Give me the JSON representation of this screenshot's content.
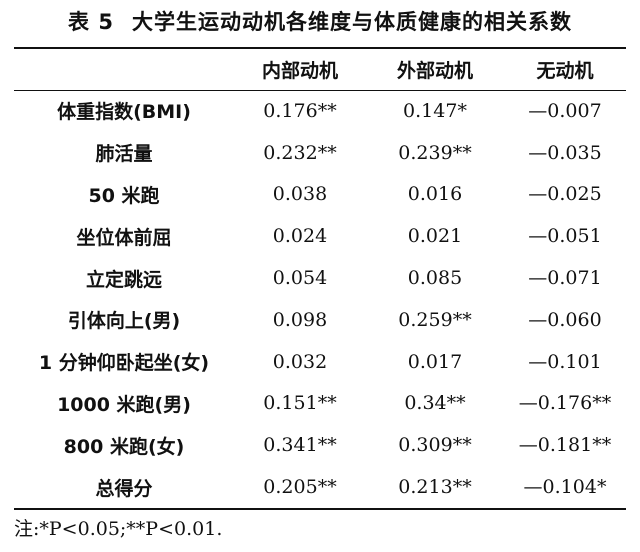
{
  "title": {
    "label": "表 5",
    "text": "大学生运动动机各维度与体质健康的相关系数"
  },
  "table": {
    "headers": [
      "",
      "内部动机",
      "外部动机",
      "无动机"
    ],
    "rows": [
      [
        "体重指数(BMI)",
        "0.176**",
        "0.147*",
        "—0.007"
      ],
      [
        "肺活量",
        "0.232**",
        "0.239**",
        "—0.035"
      ],
      [
        "50 米跑",
        "0.038",
        "0.016",
        "—0.025"
      ],
      [
        "坐位体前屈",
        "0.024",
        "0.021",
        "—0.051"
      ],
      [
        "立定跳远",
        "0.054",
        "0.085",
        "—0.071"
      ],
      [
        "引体向上(男)",
        "0.098",
        "0.259**",
        "—0.060"
      ],
      [
        "1 分钟仰卧起坐(女)",
        "0.032",
        "0.017",
        "—0.101"
      ],
      [
        "1000 米跑(男)",
        "0.151**",
        "0.34**",
        "—0.176**"
      ],
      [
        "800 米跑(女)",
        "0.341**",
        "0.309**",
        "—0.181**"
      ],
      [
        "总得分",
        "0.205**",
        "0.213**",
        "—0.104*"
      ]
    ]
  },
  "note": "注:*P<0.05;**P<0.01."
}
